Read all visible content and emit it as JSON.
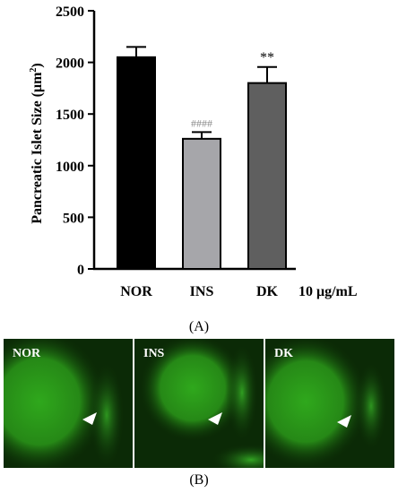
{
  "chart_data": {
    "type": "bar",
    "categories": [
      "NOR",
      "INS",
      "DK"
    ],
    "values": [
      2050,
      1260,
      1800
    ],
    "errors": [
      100,
      65,
      155
    ],
    "bar_colors": [
      "#000000",
      "#a6a6aa",
      "#5f5f5f"
    ],
    "significance": [
      "",
      "####",
      "**"
    ],
    "ylabel_text": "Pancreatic Islet Size (",
    "ylabel_unit": "μm",
    "ylabel_sup": "2",
    "ylabel_close": ")",
    "ylim": [
      0,
      2500
    ],
    "yticks": [
      0,
      500,
      1000,
      1500,
      2000,
      2500
    ],
    "dose_label": "10 μg/mL",
    "grid": false
  },
  "panel_a_label": "(A)",
  "panel_b_label": "(B)",
  "micrographs": [
    {
      "label": "NOR",
      "marker": "arrowhead"
    },
    {
      "label": "INS",
      "marker": "arrowhead"
    },
    {
      "label": "DK",
      "marker": "arrowhead"
    }
  ],
  "colors": {
    "micrograph_background": "#0b2a06",
    "tissue_green": "#2fa81c"
  }
}
